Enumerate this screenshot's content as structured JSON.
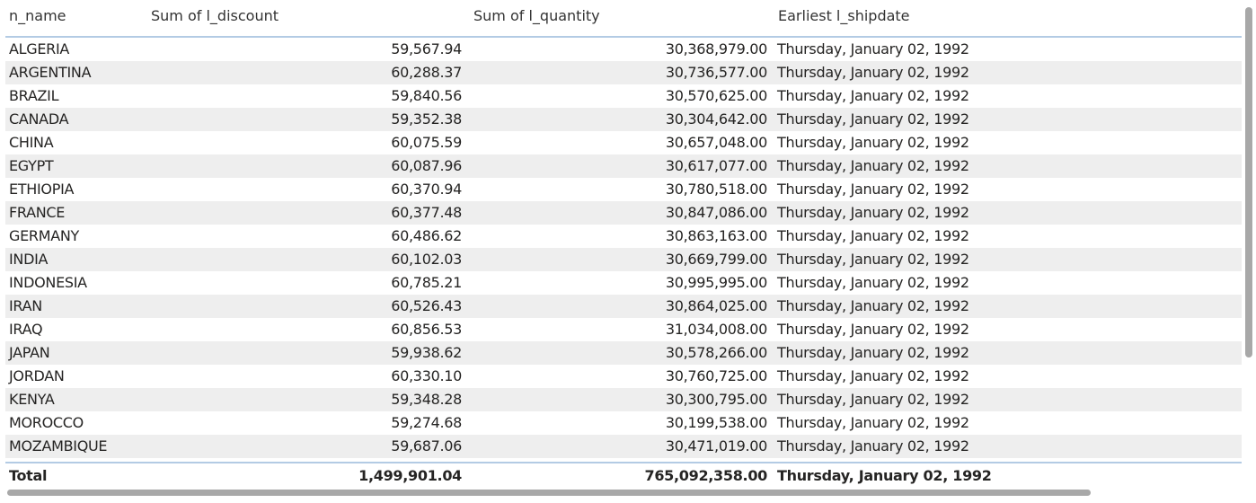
{
  "table": {
    "columns": [
      "n_name",
      "Sum of l_discount",
      "Sum of l_quantity",
      "Earliest l_shipdate"
    ],
    "rows": [
      {
        "name": "ALGERIA",
        "discount": "59,567.94",
        "quantity": "30,368,979.00",
        "shipdate": "Thursday, January 02, 1992"
      },
      {
        "name": "ARGENTINA",
        "discount": "60,288.37",
        "quantity": "30,736,577.00",
        "shipdate": "Thursday, January 02, 1992"
      },
      {
        "name": "BRAZIL",
        "discount": "59,840.56",
        "quantity": "30,570,625.00",
        "shipdate": "Thursday, January 02, 1992"
      },
      {
        "name": "CANADA",
        "discount": "59,352.38",
        "quantity": "30,304,642.00",
        "shipdate": "Thursday, January 02, 1992"
      },
      {
        "name": "CHINA",
        "discount": "60,075.59",
        "quantity": "30,657,048.00",
        "shipdate": "Thursday, January 02, 1992"
      },
      {
        "name": "EGYPT",
        "discount": "60,087.96",
        "quantity": "30,617,077.00",
        "shipdate": "Thursday, January 02, 1992"
      },
      {
        "name": "ETHIOPIA",
        "discount": "60,370.94",
        "quantity": "30,780,518.00",
        "shipdate": "Thursday, January 02, 1992"
      },
      {
        "name": "FRANCE",
        "discount": "60,377.48",
        "quantity": "30,847,086.00",
        "shipdate": "Thursday, January 02, 1992"
      },
      {
        "name": "GERMANY",
        "discount": "60,486.62",
        "quantity": "30,863,163.00",
        "shipdate": "Thursday, January 02, 1992"
      },
      {
        "name": "INDIA",
        "discount": "60,102.03",
        "quantity": "30,669,799.00",
        "shipdate": "Thursday, January 02, 1992"
      },
      {
        "name": "INDONESIA",
        "discount": "60,785.21",
        "quantity": "30,995,995.00",
        "shipdate": "Thursday, January 02, 1992"
      },
      {
        "name": "IRAN",
        "discount": "60,526.43",
        "quantity": "30,864,025.00",
        "shipdate": "Thursday, January 02, 1992"
      },
      {
        "name": "IRAQ",
        "discount": "60,856.53",
        "quantity": "31,034,008.00",
        "shipdate": "Thursday, January 02, 1992"
      },
      {
        "name": "JAPAN",
        "discount": "59,938.62",
        "quantity": "30,578,266.00",
        "shipdate": "Thursday, January 02, 1992"
      },
      {
        "name": "JORDAN",
        "discount": "60,330.10",
        "quantity": "30,760,725.00",
        "shipdate": "Thursday, January 02, 1992"
      },
      {
        "name": "KENYA",
        "discount": "59,348.28",
        "quantity": "30,300,795.00",
        "shipdate": "Thursday, January 02, 1992"
      },
      {
        "name": "MOROCCO",
        "discount": "59,274.68",
        "quantity": "30,199,538.00",
        "shipdate": "Thursday, January 02, 1992"
      },
      {
        "name": "MOZAMBIQUE",
        "discount": "59,687.06",
        "quantity": "30,471,019.00",
        "shipdate": "Thursday, January 02, 1992"
      }
    ],
    "total": {
      "label": "Total",
      "discount": "1,499,901.04",
      "quantity": "765,092,358.00",
      "shipdate": "Thursday, January 02, 1992"
    }
  },
  "colors": {
    "header_rule": "#b3cbe4",
    "alt_row": "#eeeeee",
    "scrollbar": "#a8a8a8"
  }
}
